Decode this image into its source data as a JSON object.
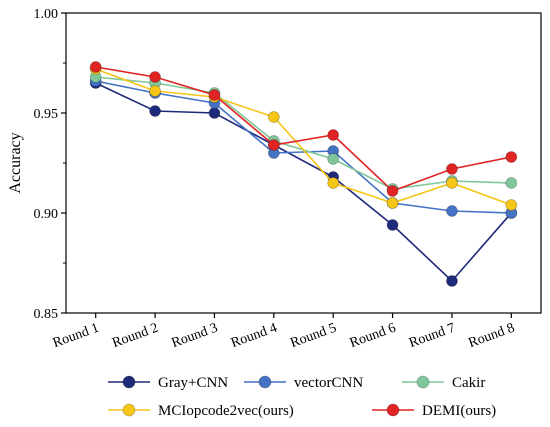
{
  "chart_data": {
    "type": "line",
    "title": "",
    "xlabel": "",
    "ylabel": "Accuracy",
    "categories": [
      "Round 1",
      "Round 2",
      "Round 3",
      "Round 4",
      "Round 5",
      "Round 6",
      "Round 7",
      "Round 8"
    ],
    "ylim": [
      0.85,
      1.0
    ],
    "yticks": [
      "0.85",
      "0.90",
      "0.95",
      "1.00"
    ],
    "grid": false,
    "legend_position": "bottom",
    "series": [
      {
        "name": "Gray+CNN",
        "color": "#1f2a7a",
        "values": [
          0.965,
          0.951,
          0.95,
          0.934,
          0.918,
          0.894,
          0.866,
          0.9
        ]
      },
      {
        "name": "vectorCNN",
        "color": "#4472c4",
        "values": [
          0.966,
          0.96,
          0.955,
          0.93,
          0.931,
          0.905,
          0.901,
          0.9
        ]
      },
      {
        "name": "Cakir",
        "color": "#7fc79a",
        "values": [
          0.968,
          0.965,
          0.96,
          0.936,
          0.927,
          0.912,
          0.916,
          0.915
        ]
      },
      {
        "name": "MCIopcode2vec(ours)",
        "color": "#f5c518",
        "values": [
          0.972,
          0.961,
          0.958,
          0.948,
          0.915,
          0.905,
          0.915,
          0.904
        ]
      },
      {
        "name": "DEMI(ours)",
        "color": "#e02424",
        "values": [
          0.973,
          0.968,
          0.959,
          0.934,
          0.939,
          0.911,
          0.922,
          0.928
        ]
      }
    ]
  }
}
